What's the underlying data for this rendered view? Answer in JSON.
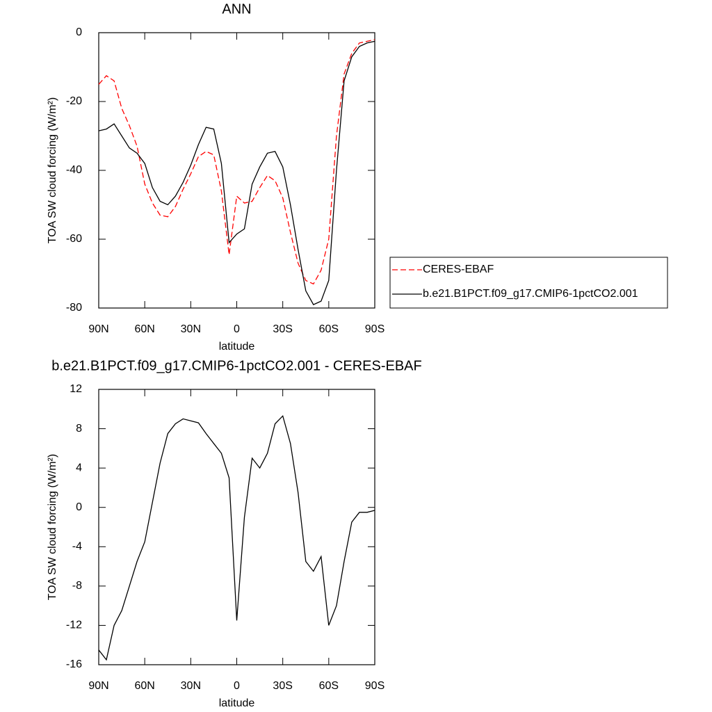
{
  "chart_data": [
    {
      "type": "line",
      "title": "ANN",
      "xlabel": "latitude",
      "ylabel": "TOA SW cloud forcing (W/m²)",
      "x": [
        90,
        85,
        80,
        75,
        70,
        65,
        60,
        55,
        50,
        45,
        40,
        35,
        30,
        25,
        20,
        15,
        10,
        5,
        0,
        -5,
        -10,
        -15,
        -20,
        -25,
        -30,
        -35,
        -40,
        -45,
        -50,
        -55,
        -60,
        -65,
        -70,
        -75,
        -80,
        -85,
        -90
      ],
      "series": [
        {
          "name": "CERES-EBAF",
          "color": "#ff0000",
          "linestyle": "dashed",
          "values": [
            -15,
            -12.5,
            -14,
            -22,
            -27,
            -33,
            -44,
            -49.5,
            -53,
            -53.5,
            -50.5,
            -45.5,
            -41,
            -36,
            -34.5,
            -35.5,
            -46,
            -64.5,
            -47.5,
            -49.5,
            -49,
            -45,
            -41.5,
            -43,
            -48,
            -58,
            -67,
            -72,
            -73,
            -69,
            -60,
            -30,
            -12,
            -6,
            -3,
            -2.5,
            -2
          ]
        },
        {
          "name": "b.e21.B1PCT.f09_g17.CMIP6-1pctCO2.001",
          "color": "#000000",
          "linestyle": "solid",
          "values": [
            -28.5,
            -28,
            -26.5,
            -30,
            -33.5,
            -35,
            -38,
            -45,
            -49,
            -50,
            -47.5,
            -43.5,
            -38.5,
            -32.5,
            -27.5,
            -28,
            -38,
            -61,
            -58.5,
            -57,
            -44,
            -39,
            -35,
            -34.5,
            -39,
            -50,
            -63,
            -75,
            -79,
            -78,
            -72,
            -40,
            -14,
            -7,
            -4,
            -3,
            -2.5
          ]
        }
      ],
      "xlim": [
        90,
        -90
      ],
      "xticks": [
        {
          "value": 90,
          "label": "90N"
        },
        {
          "value": 60,
          "label": "60N"
        },
        {
          "value": 30,
          "label": "30N"
        },
        0,
        {
          "value": -30,
          "label": "30S"
        },
        {
          "value": -60,
          "label": "60S"
        },
        {
          "value": -90,
          "label": "90S"
        }
      ],
      "ylim": [
        -80,
        0
      ],
      "yticks": [
        0,
        -20,
        -40,
        -60,
        -80
      ],
      "legend": "right"
    },
    {
      "type": "line",
      "title": "b.e21.B1PCT.f09_g17.CMIP6-1pctCO2.001 - CERES-EBAF",
      "xlabel": "latitude",
      "ylabel": "TOA SW cloud forcing (W/m²)",
      "x": [
        90,
        85,
        80,
        75,
        70,
        65,
        60,
        55,
        50,
        45,
        40,
        35,
        30,
        25,
        20,
        15,
        10,
        5,
        0,
        -5,
        -10,
        -15,
        -20,
        -25,
        -30,
        -35,
        -40,
        -45,
        -50,
        -55,
        -60,
        -65,
        -70,
        -75,
        -80,
        -85,
        -90
      ],
      "values": [
        -14.5,
        -15.5,
        -12,
        -10.5,
        -8,
        -5.5,
        -3.5,
        0.5,
        4.5,
        7.5,
        8.5,
        9,
        8.8,
        8.6,
        7.5,
        6.5,
        5.5,
        3,
        -11.5,
        -1,
        5,
        4,
        5.5,
        8.5,
        9.3,
        6.5,
        1.5,
        -5.5,
        -6.5,
        -5,
        -12,
        -10,
        -5.5,
        -1.5,
        -0.5,
        -0.5,
        -0.3
      ],
      "color": "#000000",
      "xlim": [
        90,
        -90
      ],
      "xticks": [
        {
          "value": 90,
          "label": "90N"
        },
        {
          "value": 60,
          "label": "60N"
        },
        {
          "value": 30,
          "label": "30N"
        },
        0,
        {
          "value": -30,
          "label": "30S"
        },
        {
          "value": -60,
          "label": "60S"
        },
        {
          "value": -90,
          "label": "90S"
        }
      ],
      "ylim": [
        -16,
        12
      ],
      "yticks": [
        12,
        8,
        4,
        0,
        -4,
        -8,
        -12,
        -16
      ]
    }
  ]
}
